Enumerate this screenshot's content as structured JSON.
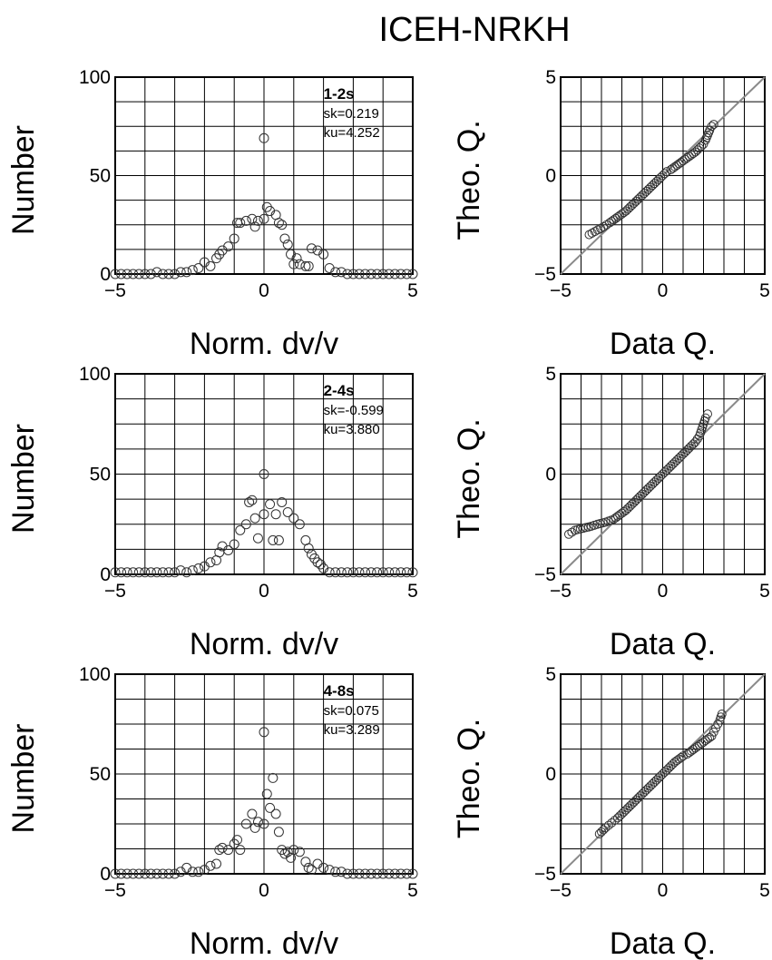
{
  "title": "ICEH-NRKH",
  "chart_data": [
    {
      "type": "scatter",
      "panel": "histogram",
      "xlabel": "Norm. dv/v",
      "ylabel": "Number",
      "xlim": [
        -5,
        5
      ],
      "ylim": [
        0,
        100
      ],
      "xticks": [
        -5,
        0,
        5
      ],
      "yticks": [
        0,
        50,
        100
      ],
      "grid": true,
      "annotations": [
        "1-2s",
        "sk=0.219",
        "ku=4.252"
      ],
      "points": [
        [
          -5.0,
          0
        ],
        [
          -4.8,
          0
        ],
        [
          -4.6,
          0
        ],
        [
          -4.4,
          0
        ],
        [
          -4.2,
          0
        ],
        [
          -4.0,
          0
        ],
        [
          -3.8,
          0
        ],
        [
          -3.6,
          1
        ],
        [
          -3.4,
          0
        ],
        [
          -3.2,
          0
        ],
        [
          -3.0,
          0
        ],
        [
          -2.8,
          1
        ],
        [
          -2.6,
          1
        ],
        [
          -2.4,
          2
        ],
        [
          -2.2,
          3
        ],
        [
          -2.0,
          6
        ],
        [
          -1.8,
          4
        ],
        [
          -1.6,
          8
        ],
        [
          -1.5,
          10
        ],
        [
          -1.4,
          12
        ],
        [
          -1.2,
          14
        ],
        [
          -1.0,
          18
        ],
        [
          -0.9,
          26
        ],
        [
          -0.8,
          26
        ],
        [
          -0.6,
          27
        ],
        [
          -0.4,
          28
        ],
        [
          -0.3,
          24
        ],
        [
          -0.2,
          27
        ],
        [
          0.0,
          69
        ],
        [
          0.0,
          28
        ],
        [
          0.1,
          34
        ],
        [
          0.2,
          32
        ],
        [
          0.4,
          30
        ],
        [
          0.5,
          26
        ],
        [
          0.6,
          25
        ],
        [
          0.7,
          18
        ],
        [
          0.8,
          15
        ],
        [
          0.9,
          10
        ],
        [
          1.0,
          5
        ],
        [
          1.1,
          8
        ],
        [
          1.2,
          5
        ],
        [
          1.4,
          4
        ],
        [
          1.5,
          4
        ],
        [
          1.6,
          13
        ],
        [
          1.8,
          12
        ],
        [
          2.0,
          10
        ],
        [
          2.2,
          3
        ],
        [
          2.4,
          1
        ],
        [
          2.6,
          1
        ],
        [
          2.8,
          0
        ],
        [
          3.0,
          0
        ],
        [
          3.2,
          0
        ],
        [
          3.4,
          0
        ],
        [
          3.6,
          0
        ],
        [
          3.8,
          0
        ],
        [
          4.0,
          0
        ],
        [
          4.2,
          0
        ],
        [
          4.4,
          0
        ],
        [
          4.6,
          0
        ],
        [
          4.8,
          0
        ],
        [
          5.0,
          0
        ]
      ]
    },
    {
      "type": "scatter",
      "panel": "qq",
      "xlabel": "Data Q.",
      "ylabel": "Theo. Q.",
      "xlim": [
        -5,
        5
      ],
      "ylim": [
        -5,
        5
      ],
      "xticks": [
        -5,
        0,
        5
      ],
      "yticks": [
        -5,
        0,
        5
      ],
      "grid": true,
      "reference_line": [
        [
          -5,
          -5
        ],
        [
          5,
          5
        ]
      ],
      "points": [
        [
          -3.6,
          -3.0
        ],
        [
          -2.9,
          -2.6
        ],
        [
          -2.6,
          -2.4
        ],
        [
          -2.4,
          -2.25
        ],
        [
          -2.2,
          -2.1
        ],
        [
          -2.0,
          -1.95
        ],
        [
          -1.8,
          -1.8
        ],
        [
          -1.6,
          -1.6
        ],
        [
          -1.4,
          -1.4
        ],
        [
          -1.2,
          -1.2
        ],
        [
          -1.0,
          -1.0
        ],
        [
          -0.8,
          -0.8
        ],
        [
          -0.6,
          -0.6
        ],
        [
          -0.4,
          -0.4
        ],
        [
          -0.2,
          -0.2
        ],
        [
          0.0,
          0.0
        ],
        [
          0.2,
          0.2
        ],
        [
          0.4,
          0.3
        ],
        [
          0.6,
          0.45
        ],
        [
          0.8,
          0.6
        ],
        [
          1.0,
          0.75
        ],
        [
          1.2,
          0.9
        ],
        [
          1.4,
          1.05
        ],
        [
          1.6,
          1.2
        ],
        [
          1.8,
          1.4
        ],
        [
          2.0,
          1.6
        ],
        [
          2.1,
          1.8
        ],
        [
          2.2,
          2.05
        ],
        [
          2.3,
          2.3
        ],
        [
          2.4,
          2.5
        ],
        [
          2.5,
          2.6
        ]
      ]
    },
    {
      "type": "scatter",
      "panel": "histogram",
      "xlabel": "Norm. dv/v",
      "ylabel": "Number",
      "xlim": [
        -5,
        5
      ],
      "ylim": [
        0,
        100
      ],
      "xticks": [
        -5,
        0,
        5
      ],
      "yticks": [
        0,
        50,
        100
      ],
      "grid": true,
      "annotations": [
        "2-4s",
        "sk=-0.599",
        "ku=3.880"
      ],
      "points": [
        [
          -5.0,
          1
        ],
        [
          -4.8,
          1
        ],
        [
          -4.6,
          1
        ],
        [
          -4.4,
          1
        ],
        [
          -4.2,
          1
        ],
        [
          -4.0,
          1
        ],
        [
          -3.8,
          1
        ],
        [
          -3.6,
          1
        ],
        [
          -3.4,
          1
        ],
        [
          -3.2,
          1
        ],
        [
          -3.0,
          1
        ],
        [
          -2.8,
          2
        ],
        [
          -2.6,
          1
        ],
        [
          -2.4,
          2
        ],
        [
          -2.2,
          3
        ],
        [
          -2.0,
          4
        ],
        [
          -1.8,
          6
        ],
        [
          -1.6,
          7
        ],
        [
          -1.5,
          11
        ],
        [
          -1.4,
          14
        ],
        [
          -1.2,
          12
        ],
        [
          -1.0,
          15
        ],
        [
          -0.8,
          22
        ],
        [
          -0.6,
          25
        ],
        [
          -0.5,
          36
        ],
        [
          -0.4,
          37
        ],
        [
          -0.3,
          28
        ],
        [
          -0.2,
          18
        ],
        [
          0.0,
          50
        ],
        [
          0.0,
          30
        ],
        [
          0.2,
          35
        ],
        [
          0.4,
          30
        ],
        [
          0.6,
          36
        ],
        [
          0.8,
          31
        ],
        [
          1.0,
          28
        ],
        [
          1.2,
          25
        ],
        [
          0.3,
          17
        ],
        [
          0.5,
          17
        ],
        [
          1.4,
          17
        ],
        [
          1.5,
          13
        ],
        [
          1.6,
          10
        ],
        [
          1.7,
          8
        ],
        [
          1.8,
          6
        ],
        [
          1.9,
          5
        ],
        [
          2.0,
          3
        ],
        [
          2.2,
          1
        ],
        [
          2.4,
          1
        ],
        [
          2.6,
          1
        ],
        [
          2.8,
          1
        ],
        [
          3.0,
          1
        ],
        [
          3.2,
          1
        ],
        [
          3.4,
          1
        ],
        [
          3.6,
          1
        ],
        [
          3.8,
          1
        ],
        [
          4.0,
          1
        ],
        [
          4.2,
          1
        ],
        [
          4.4,
          1
        ],
        [
          4.6,
          1
        ],
        [
          4.8,
          1
        ],
        [
          5.0,
          1
        ]
      ]
    },
    {
      "type": "scatter",
      "panel": "qq",
      "xlabel": "Data Q.",
      "ylabel": "Theo. Q.",
      "xlim": [
        -5,
        5
      ],
      "ylim": [
        -5,
        5
      ],
      "xticks": [
        -5,
        0,
        5
      ],
      "yticks": [
        -5,
        0,
        5
      ],
      "grid": true,
      "reference_line": [
        [
          -5,
          -5
        ],
        [
          5,
          5
        ]
      ],
      "points": [
        [
          -4.6,
          -3.0
        ],
        [
          -4.3,
          -2.8
        ],
        [
          -3.9,
          -2.7
        ],
        [
          -3.5,
          -2.6
        ],
        [
          -3.2,
          -2.5
        ],
        [
          -2.8,
          -2.4
        ],
        [
          -2.4,
          -2.25
        ],
        [
          -2.2,
          -2.1
        ],
        [
          -2.0,
          -1.95
        ],
        [
          -1.8,
          -1.8
        ],
        [
          -1.6,
          -1.6
        ],
        [
          -1.4,
          -1.4
        ],
        [
          -1.2,
          -1.2
        ],
        [
          -1.0,
          -1.0
        ],
        [
          -0.8,
          -0.8
        ],
        [
          -0.6,
          -0.6
        ],
        [
          -0.4,
          -0.4
        ],
        [
          -0.2,
          -0.2
        ],
        [
          0.0,
          0.0
        ],
        [
          0.2,
          0.2
        ],
        [
          0.4,
          0.4
        ],
        [
          0.6,
          0.6
        ],
        [
          0.8,
          0.8
        ],
        [
          1.0,
          1.0
        ],
        [
          1.2,
          1.2
        ],
        [
          1.4,
          1.4
        ],
        [
          1.6,
          1.6
        ],
        [
          1.8,
          1.9
        ],
        [
          1.9,
          2.2
        ],
        [
          2.0,
          2.5
        ],
        [
          2.1,
          2.8
        ],
        [
          2.2,
          3.0
        ]
      ]
    },
    {
      "type": "scatter",
      "panel": "histogram",
      "xlabel": "Norm. dv/v",
      "ylabel": "Number",
      "xlim": [
        -5,
        5
      ],
      "ylim": [
        0,
        100
      ],
      "xticks": [
        -5,
        0,
        5
      ],
      "yticks": [
        0,
        50,
        100
      ],
      "grid": true,
      "annotations": [
        "4-8s",
        "sk=0.075",
        "ku=3.289"
      ],
      "points": [
        [
          -5.0,
          0
        ],
        [
          -4.8,
          0
        ],
        [
          -4.6,
          0
        ],
        [
          -4.4,
          0
        ],
        [
          -4.2,
          0
        ],
        [
          -4.0,
          0
        ],
        [
          -3.8,
          0
        ],
        [
          -3.6,
          0
        ],
        [
          -3.4,
          0
        ],
        [
          -3.2,
          0
        ],
        [
          -3.0,
          0
        ],
        [
          -2.8,
          1
        ],
        [
          -2.6,
          3
        ],
        [
          -2.4,
          1
        ],
        [
          -2.2,
          1
        ],
        [
          -2.0,
          2
        ],
        [
          -1.8,
          4
        ],
        [
          -1.6,
          5
        ],
        [
          -1.5,
          12
        ],
        [
          -1.4,
          13
        ],
        [
          -1.2,
          12
        ],
        [
          -1.0,
          15
        ],
        [
          -0.9,
          17
        ],
        [
          -0.8,
          12
        ],
        [
          -0.6,
          25
        ],
        [
          -0.4,
          30
        ],
        [
          -0.3,
          23
        ],
        [
          -0.2,
          26
        ],
        [
          0.0,
          71
        ],
        [
          0.0,
          25
        ],
        [
          0.1,
          40
        ],
        [
          0.2,
          33
        ],
        [
          0.3,
          48
        ],
        [
          0.4,
          30
        ],
        [
          0.5,
          21
        ],
        [
          0.6,
          12
        ],
        [
          0.7,
          10
        ],
        [
          0.8,
          11
        ],
        [
          0.9,
          8
        ],
        [
          1.0,
          12
        ],
        [
          1.2,
          11
        ],
        [
          1.4,
          6
        ],
        [
          1.5,
          3
        ],
        [
          1.6,
          2
        ],
        [
          1.8,
          5
        ],
        [
          2.0,
          3
        ],
        [
          2.2,
          2
        ],
        [
          2.4,
          1
        ],
        [
          2.6,
          1
        ],
        [
          2.8,
          0
        ],
        [
          3.0,
          0
        ],
        [
          3.2,
          0
        ],
        [
          3.4,
          0
        ],
        [
          3.6,
          0
        ],
        [
          3.8,
          0
        ],
        [
          4.0,
          0
        ],
        [
          4.2,
          0
        ],
        [
          4.4,
          0
        ],
        [
          4.6,
          0
        ],
        [
          4.8,
          0
        ],
        [
          5.0,
          0
        ]
      ]
    },
    {
      "type": "scatter",
      "panel": "qq",
      "xlabel": "Data Q.",
      "ylabel": "Theo. Q.",
      "xlim": [
        -5,
        5
      ],
      "ylim": [
        -5,
        5
      ],
      "xticks": [
        -5,
        0,
        5
      ],
      "yticks": [
        -5,
        0,
        5
      ],
      "grid": true,
      "reference_line": [
        [
          -5,
          -5
        ],
        [
          5,
          5
        ]
      ],
      "points": [
        [
          -3.1,
          -3.0
        ],
        [
          -2.8,
          -2.7
        ],
        [
          -2.5,
          -2.45
        ],
        [
          -2.2,
          -2.2
        ],
        [
          -2.0,
          -2.0
        ],
        [
          -1.8,
          -1.8
        ],
        [
          -1.6,
          -1.6
        ],
        [
          -1.4,
          -1.4
        ],
        [
          -1.2,
          -1.2
        ],
        [
          -1.0,
          -1.0
        ],
        [
          -0.8,
          -0.8
        ],
        [
          -0.6,
          -0.6
        ],
        [
          -0.4,
          -0.4
        ],
        [
          -0.2,
          -0.2
        ],
        [
          0.0,
          0.0
        ],
        [
          0.2,
          0.2
        ],
        [
          0.4,
          0.4
        ],
        [
          0.6,
          0.6
        ],
        [
          0.8,
          0.75
        ],
        [
          1.0,
          0.9
        ],
        [
          1.2,
          1.0
        ],
        [
          1.4,
          1.15
        ],
        [
          1.6,
          1.3
        ],
        [
          1.8,
          1.45
        ],
        [
          2.0,
          1.6
        ],
        [
          2.2,
          1.75
        ],
        [
          2.4,
          1.9
        ],
        [
          2.5,
          2.1
        ],
        [
          2.6,
          2.3
        ],
        [
          2.7,
          2.5
        ],
        [
          2.8,
          2.7
        ],
        [
          2.9,
          3.0
        ]
      ]
    }
  ]
}
